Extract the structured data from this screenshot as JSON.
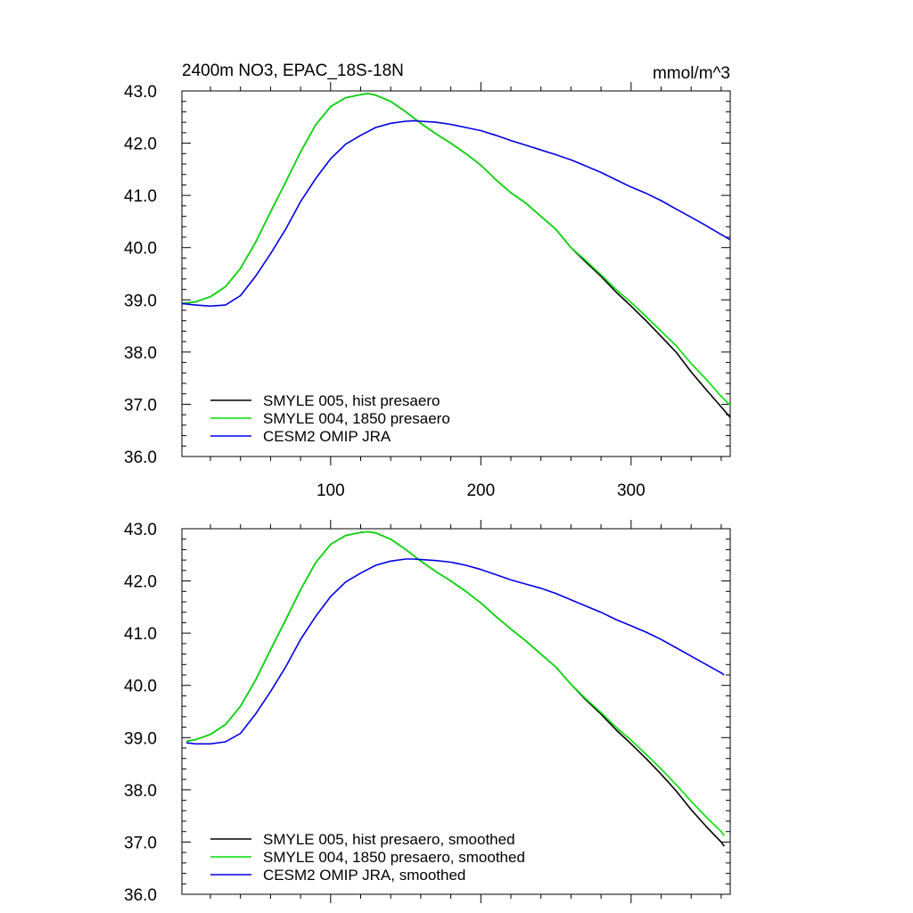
{
  "figure": {
    "title": "2400m NO3, EPAC_18S-18N",
    "units": "mmol/m^3"
  },
  "colors": {
    "hist": "#000000",
    "p1850": "#00e000",
    "omip": "#0000e6"
  },
  "chart_data": [
    {
      "type": "line",
      "panel": "raw",
      "xlim": [
        1,
        366
      ],
      "ylim": [
        36.0,
        43.0
      ],
      "xticks": [
        100,
        200,
        300
      ],
      "xtick_labels": [
        "100",
        "200",
        "300"
      ],
      "yticks": [
        36.0,
        37.0,
        38.0,
        39.0,
        40.0,
        41.0,
        42.0,
        43.0
      ],
      "ytick_labels": [
        "36.0",
        "37.0",
        "38.0",
        "39.0",
        "40.0",
        "41.0",
        "42.0",
        "43.0"
      ],
      "legend_position": "bottom-left",
      "series": [
        {
          "name": "SMYLE 005, hist presaero",
          "color_key": "hist",
          "x": [
            1,
            10,
            20,
            30,
            40,
            50,
            60,
            70,
            80,
            90,
            100,
            110,
            120,
            125,
            130,
            140,
            150,
            160,
            170,
            180,
            190,
            200,
            210,
            220,
            230,
            240,
            250,
            260,
            270,
            280,
            290,
            300,
            310,
            320,
            330,
            340,
            350,
            360,
            366
          ],
          "y": [
            38.93,
            38.96,
            39.06,
            39.25,
            39.6,
            40.1,
            40.68,
            41.25,
            41.83,
            42.35,
            42.7,
            42.87,
            42.93,
            42.95,
            42.92,
            42.8,
            42.6,
            42.38,
            42.18,
            42.0,
            41.8,
            41.58,
            41.3,
            41.05,
            40.85,
            40.6,
            40.35,
            40.0,
            39.72,
            39.45,
            39.15,
            38.88,
            38.6,
            38.3,
            38.0,
            37.62,
            37.28,
            36.95,
            36.75
          ]
        },
        {
          "name": "SMYLE 004, 1850 presaero",
          "color_key": "p1850",
          "x": [
            1,
            10,
            20,
            30,
            40,
            50,
            60,
            70,
            80,
            90,
            100,
            110,
            120,
            125,
            130,
            140,
            150,
            160,
            170,
            180,
            190,
            200,
            210,
            220,
            230,
            240,
            250,
            260,
            270,
            280,
            290,
            300,
            310,
            320,
            330,
            340,
            350,
            360,
            366
          ],
          "y": [
            38.93,
            38.96,
            39.06,
            39.25,
            39.6,
            40.1,
            40.68,
            41.25,
            41.83,
            42.35,
            42.7,
            42.87,
            42.93,
            42.95,
            42.92,
            42.8,
            42.6,
            42.38,
            42.18,
            42.0,
            41.8,
            41.58,
            41.3,
            41.05,
            40.85,
            40.6,
            40.35,
            40.0,
            39.75,
            39.48,
            39.2,
            38.95,
            38.68,
            38.4,
            38.12,
            37.78,
            37.48,
            37.15,
            36.98
          ]
        },
        {
          "name": "CESM2 OMIP JRA",
          "color_key": "omip",
          "x": [
            1,
            10,
            20,
            30,
            40,
            50,
            60,
            70,
            80,
            90,
            100,
            110,
            120,
            130,
            140,
            150,
            155,
            160,
            170,
            180,
            190,
            200,
            210,
            220,
            230,
            240,
            250,
            260,
            270,
            280,
            290,
            300,
            310,
            320,
            330,
            340,
            350,
            360,
            366
          ],
          "y": [
            38.93,
            38.9,
            38.88,
            38.9,
            39.08,
            39.45,
            39.88,
            40.35,
            40.88,
            41.32,
            41.7,
            41.98,
            42.15,
            42.3,
            42.38,
            42.42,
            42.43,
            42.42,
            42.4,
            42.36,
            42.3,
            42.24,
            42.15,
            42.05,
            41.96,
            41.87,
            41.78,
            41.68,
            41.56,
            41.44,
            41.3,
            41.16,
            41.04,
            40.9,
            40.74,
            40.58,
            40.42,
            40.25,
            40.15
          ]
        }
      ]
    },
    {
      "type": "line",
      "panel": "smoothed",
      "xlim": [
        1,
        366
      ],
      "ylim": [
        36.0,
        43.0
      ],
      "xticks": [
        100,
        200,
        300
      ],
      "xtick_labels": [
        "",
        "",
        ""
      ],
      "yticks": [
        36.0,
        37.0,
        38.0,
        39.0,
        40.0,
        41.0,
        42.0,
        43.0
      ],
      "ytick_labels": [
        "36.0",
        "37.0",
        "38.0",
        "39.0",
        "40.0",
        "41.0",
        "42.0",
        "43.0"
      ],
      "legend_position": "bottom-left",
      "series": [
        {
          "name": "SMYLE 005, hist presaero, smoothed",
          "color_key": "hist",
          "x": [
            4,
            10,
            20,
            30,
            40,
            50,
            60,
            70,
            80,
            90,
            100,
            110,
            120,
            125,
            130,
            140,
            150,
            160,
            170,
            180,
            190,
            200,
            210,
            220,
            230,
            240,
            250,
            260,
            270,
            280,
            290,
            300,
            310,
            320,
            330,
            340,
            350,
            360,
            362
          ],
          "y": [
            38.93,
            38.96,
            39.06,
            39.25,
            39.6,
            40.1,
            40.68,
            41.25,
            41.83,
            42.35,
            42.7,
            42.87,
            42.93,
            42.94,
            42.92,
            42.8,
            42.6,
            42.38,
            42.18,
            42.0,
            41.8,
            41.58,
            41.32,
            41.08,
            40.85,
            40.6,
            40.35,
            40.02,
            39.72,
            39.45,
            39.15,
            38.88,
            38.6,
            38.3,
            37.98,
            37.62,
            37.3,
            37.0,
            36.92
          ]
        },
        {
          "name": "SMYLE 004, 1850 presaero, smoothed",
          "color_key": "p1850",
          "x": [
            4,
            10,
            20,
            30,
            40,
            50,
            60,
            70,
            80,
            90,
            100,
            110,
            120,
            125,
            130,
            140,
            150,
            160,
            170,
            180,
            190,
            200,
            210,
            220,
            230,
            240,
            250,
            260,
            270,
            280,
            290,
            300,
            310,
            320,
            330,
            340,
            350,
            360,
            362
          ],
          "y": [
            38.93,
            38.96,
            39.06,
            39.25,
            39.6,
            40.1,
            40.68,
            41.25,
            41.83,
            42.35,
            42.7,
            42.87,
            42.93,
            42.94,
            42.92,
            42.8,
            42.6,
            42.38,
            42.18,
            42.0,
            41.8,
            41.58,
            41.32,
            41.08,
            40.85,
            40.6,
            40.35,
            40.02,
            39.74,
            39.48,
            39.2,
            38.95,
            38.68,
            38.4,
            38.1,
            37.78,
            37.48,
            37.2,
            37.12
          ]
        },
        {
          "name": "CESM2 OMIP JRA, smoothed",
          "color_key": "omip",
          "x": [
            4,
            10,
            20,
            30,
            40,
            50,
            60,
            70,
            80,
            90,
            100,
            110,
            120,
            130,
            140,
            150,
            155,
            160,
            170,
            180,
            190,
            200,
            210,
            220,
            230,
            240,
            250,
            260,
            270,
            280,
            290,
            300,
            310,
            320,
            330,
            340,
            350,
            360,
            362
          ],
          "y": [
            38.9,
            38.88,
            38.88,
            38.92,
            39.08,
            39.45,
            39.88,
            40.35,
            40.88,
            41.32,
            41.7,
            41.98,
            42.15,
            42.3,
            42.38,
            42.42,
            42.42,
            42.41,
            42.39,
            42.36,
            42.3,
            42.22,
            42.12,
            42.02,
            41.94,
            41.86,
            41.76,
            41.64,
            41.52,
            41.4,
            41.26,
            41.14,
            41.02,
            40.88,
            40.72,
            40.56,
            40.4,
            40.24,
            40.2
          ]
        }
      ]
    }
  ]
}
